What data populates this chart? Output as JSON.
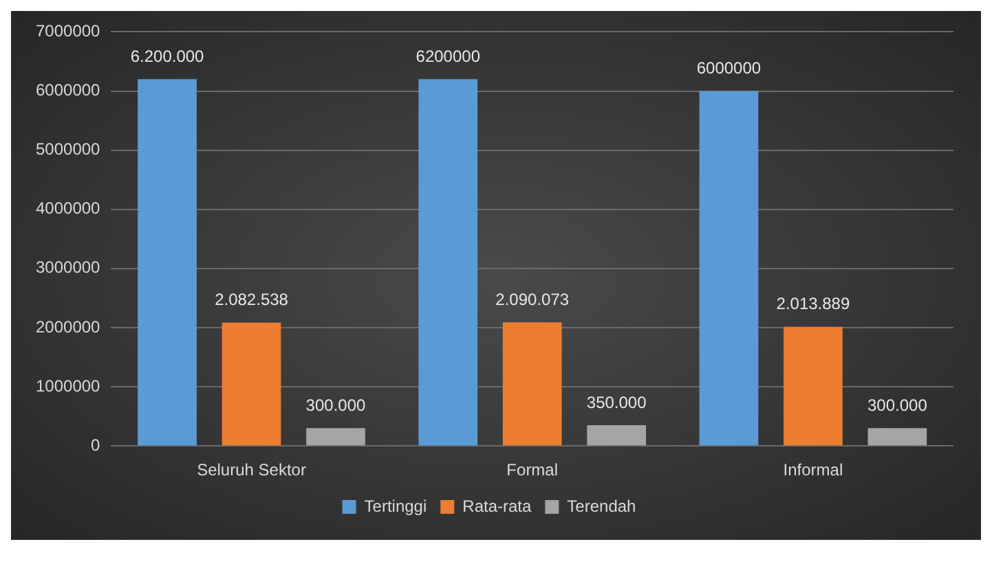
{
  "chart_data": {
    "type": "bar",
    "categories": [
      "Seluruh Sektor",
      "Formal",
      "Informal"
    ],
    "series": [
      {
        "name": "Tertinggi",
        "color": "#5b9bd5",
        "values": [
          6200000,
          6200000,
          6000000
        ],
        "value_labels": [
          "6.200.000",
          "6200000",
          "6000000"
        ]
      },
      {
        "name": "Rata-rata",
        "color": "#ed7d31",
        "values": [
          2082538,
          2090073,
          2013889
        ],
        "value_labels": [
          "2.082.538",
          "2.090.073",
          "2.013.889"
        ]
      },
      {
        "name": "Terendah",
        "color": "#a5a5a5",
        "values": [
          300000,
          350000,
          300000
        ],
        "value_labels": [
          "300.000",
          "350.000",
          "300.000"
        ]
      }
    ],
    "ylim": [
      0,
      7000000
    ],
    "yticks": [
      0,
      1000000,
      2000000,
      3000000,
      4000000,
      5000000,
      6000000,
      7000000
    ],
    "grid": "y",
    "legend": "bottom"
  }
}
